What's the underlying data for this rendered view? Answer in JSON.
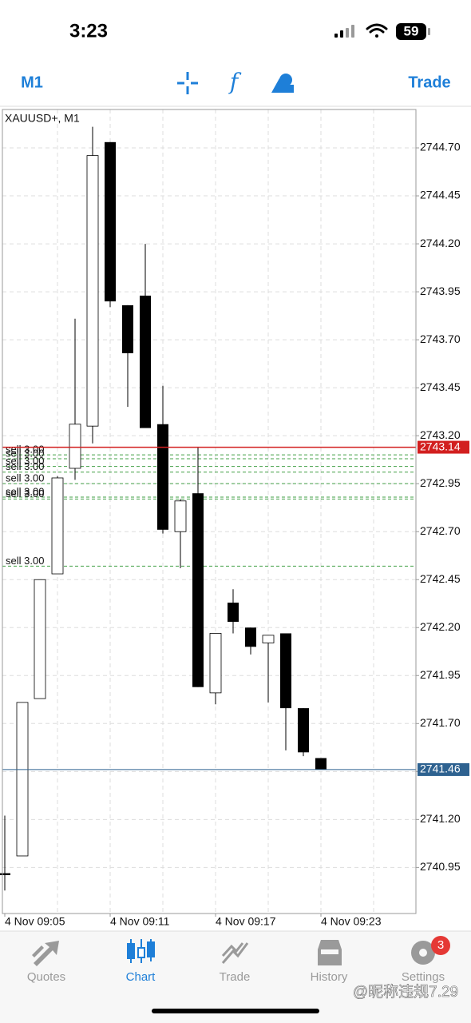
{
  "status_bar": {
    "time": "3:23",
    "battery": "59"
  },
  "toolbar": {
    "period": "M1",
    "trade": "Trade"
  },
  "chart_data": {
    "type": "candlestick",
    "title": "XAUUSD+, M1",
    "categories": [
      "4 Nov 09:05",
      null,
      null,
      null,
      null,
      null,
      "4 Nov 09:11",
      null,
      null,
      null,
      null,
      null,
      "4 Nov 09:17",
      null,
      null,
      null,
      null,
      null,
      "4 Nov 09:23"
    ],
    "open": [
      2740.92,
      2741.01,
      2741.83,
      2742.48,
      2743.03,
      2743.25,
      2744.73,
      2743.88,
      2743.93,
      2743.26,
      2742.7,
      2742.9,
      2741.86,
      2742.33,
      2742.2,
      2742.12,
      2742.17,
      2741.78,
      2741.52
    ],
    "high": [
      2741.22,
      2741.81,
      2742.45,
      2742.99,
      2743.81,
      2744.81,
      2744.73,
      2743.88,
      2744.2,
      2743.46,
      2742.87,
      2743.14,
      2742.17,
      2742.4,
      2742.2,
      2742.16,
      2742.17,
      2741.78,
      2741.52
    ],
    "low": [
      2740.83,
      2741.01,
      2741.83,
      2742.48,
      2742.97,
      2743.16,
      2743.87,
      2743.35,
      2743.24,
      2742.69,
      2742.51,
      2741.89,
      2741.8,
      2742.17,
      2742.06,
      2741.81,
      2741.56,
      2741.53,
      2741.46
    ],
    "close": [
      2740.91,
      2741.81,
      2742.45,
      2742.98,
      2743.26,
      2744.66,
      2743.9,
      2743.63,
      2743.24,
      2742.71,
      2742.86,
      2741.89,
      2742.17,
      2742.23,
      2742.1,
      2742.16,
      2741.78,
      2741.55,
      2741.46
    ],
    "bull_color": "#ffffff",
    "bear_color": "#000000",
    "ylim": [
      2740.71,
      2744.9
    ],
    "yticks": [
      2740.95,
      {
        "value": 2741.2,
        "label": "2741.20"
      },
      2741.45,
      {
        "value": 2741.7,
        "label": "2741.70"
      },
      2741.95,
      {
        "value": 2742.2,
        "label": "2742.20"
      },
      2742.45,
      {
        "value": 2742.7,
        "label": "2742.70"
      },
      2742.95,
      {
        "value": 2743.2,
        "label": "2743.20"
      },
      2743.45,
      {
        "value": 2743.7,
        "label": "2743.70"
      },
      2743.95,
      {
        "value": 2744.2,
        "label": "2744.20"
      },
      2744.45,
      {
        "value": 2744.7,
        "label": "2744.70"
      }
    ],
    "grid": true,
    "price_lines": [
      {
        "value": 2743.14,
        "color": "#d21f1f"
      },
      {
        "value": 2741.46,
        "color": "#2e6290"
      }
    ],
    "orders": [
      {
        "label": "sell 3.00",
        "price": 2743.1
      },
      {
        "label": "sell 3.00",
        "price": 2743.08
      },
      {
        "label": "sell 3.00",
        "price": 2743.04
      },
      {
        "label": "sell 3.00",
        "price": 2743.01
      },
      {
        "label": "sell 3.00",
        "price": 2742.95
      },
      {
        "label": "sell 3.00",
        "price": 2742.88
      },
      {
        "label": "sell 3.00",
        "price": 2742.87
      },
      {
        "label": "sell 3.00",
        "price": 2742.52
      }
    ],
    "order_color": "#43a047"
  },
  "tab_bar": {
    "tabs": [
      "Quotes",
      "Chart",
      "Trade",
      "History",
      "Settings"
    ],
    "badge": "3"
  },
  "watermark": "@昵称违规7.29"
}
